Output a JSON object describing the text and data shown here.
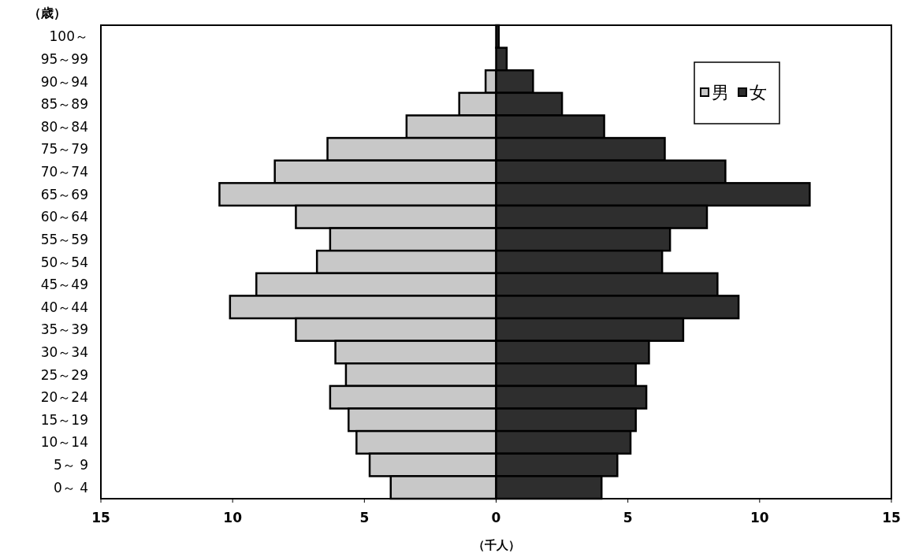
{
  "chart_data": {
    "type": "bar",
    "orientation": "horizontal",
    "ylabel": "（歳）",
    "xlabel": "（千人）",
    "categories": [
      "100～",
      "95～99",
      "90～94",
      "85～89",
      "80～84",
      "75～79",
      "70～74",
      "65～69",
      "60～64",
      "55～59",
      "50～54",
      "45～49",
      "40～44",
      "35～39",
      "30～34",
      "25～29",
      "20～24",
      "15～19",
      "10～14",
      "5～ 9",
      "0～ 4"
    ],
    "series": [
      {
        "name": "男",
        "color": "#c8c8c8",
        "values": [
          null,
          null,
          -0.4,
          -1.4,
          -3.4,
          -6.4,
          -8.4,
          -10.5,
          -7.6,
          -6.3,
          -6.8,
          -9.1,
          -10.1,
          -7.6,
          -6.1,
          -5.7,
          -6.3,
          -5.6,
          -5.3,
          -4.8,
          -4.0
        ]
      },
      {
        "name": "女",
        "color": "#2e2e2e",
        "values": [
          0.1,
          0.4,
          1.4,
          2.5,
          4.1,
          6.4,
          8.7,
          11.9,
          8.0,
          6.6,
          6.3,
          8.4,
          9.2,
          7.1,
          5.8,
          5.3,
          5.7,
          5.3,
          5.1,
          4.6,
          4.0
        ]
      }
    ],
    "xlim": [
      -15,
      15
    ],
    "xticks": [
      {
        "value": -15,
        "label": "15"
      },
      {
        "value": -10,
        "label": "10"
      },
      {
        "value": -5,
        "label": "5"
      },
      0,
      5,
      10,
      15
    ],
    "stacked": true,
    "legend": "top right",
    "grid": false
  }
}
